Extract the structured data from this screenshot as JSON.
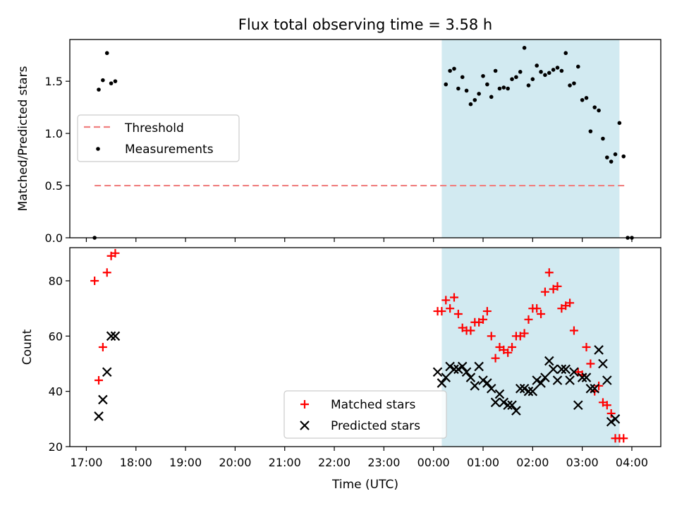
{
  "title": "Flux total observing time = 3.58 h",
  "colors": {
    "threshold": "#f08080",
    "measurement": "#000000",
    "matched": "#ff0000",
    "predicted": "#000000",
    "shade": "#add8e6"
  },
  "chart_data": [
    {
      "type": "scatter",
      "ylabel": "Matched/Predicted stars",
      "x_axis": "time (h since 17:00)",
      "ylim": [
        0,
        1.9
      ],
      "yticks": [
        0.0,
        0.5,
        1.0,
        1.5
      ],
      "ytick_labels": [
        "0.0",
        "0.5",
        "1.0",
        "1.5"
      ],
      "legend": [
        "Threshold",
        "Measurements"
      ],
      "legend_loc": "center-left",
      "shaded_span": [
        "00:10",
        "03:45"
      ],
      "threshold": {
        "name": "Threshold",
        "y": 0.5,
        "x_range": [
          "17:10",
          "03:55"
        ]
      },
      "measurements": {
        "name": "Measurements",
        "points": [
          [
            "17:10",
            0.0
          ],
          [
            "17:15",
            1.42
          ],
          [
            "17:20",
            1.51
          ],
          [
            "17:25",
            1.77
          ],
          [
            "17:30",
            1.48
          ],
          [
            "17:35",
            1.5
          ],
          [
            "00:15",
            1.47
          ],
          [
            "00:20",
            1.6
          ],
          [
            "00:25",
            1.62
          ],
          [
            "00:30",
            1.43
          ],
          [
            "00:35",
            1.54
          ],
          [
            "00:40",
            1.41
          ],
          [
            "00:45",
            1.28
          ],
          [
            "00:50",
            1.32
          ],
          [
            "00:55",
            1.38
          ],
          [
            "01:00",
            1.55
          ],
          [
            "01:05",
            1.47
          ],
          [
            "01:10",
            1.35
          ],
          [
            "01:15",
            1.6
          ],
          [
            "01:20",
            1.43
          ],
          [
            "01:25",
            1.44
          ],
          [
            "01:30",
            1.43
          ],
          [
            "01:35",
            1.52
          ],
          [
            "01:40",
            1.54
          ],
          [
            "01:45",
            1.59
          ],
          [
            "01:50",
            1.82
          ],
          [
            "01:55",
            1.46
          ],
          [
            "02:00",
            1.52
          ],
          [
            "02:05",
            1.65
          ],
          [
            "02:10",
            1.59
          ],
          [
            "02:15",
            1.56
          ],
          [
            "02:20",
            1.58
          ],
          [
            "02:25",
            1.61
          ],
          [
            "02:30",
            1.63
          ],
          [
            "02:35",
            1.6
          ],
          [
            "02:40",
            1.77
          ],
          [
            "02:45",
            1.46
          ],
          [
            "02:50",
            1.48
          ],
          [
            "02:55",
            1.64
          ],
          [
            "03:00",
            1.32
          ],
          [
            "03:05",
            1.34
          ],
          [
            "03:10",
            1.02
          ],
          [
            "03:15",
            1.25
          ],
          [
            "03:20",
            1.22
          ],
          [
            "03:25",
            0.95
          ],
          [
            "03:30",
            0.77
          ],
          [
            "03:35",
            0.73
          ],
          [
            "03:40",
            0.8
          ],
          [
            "03:45",
            1.1
          ],
          [
            "03:50",
            0.78
          ],
          [
            "03:55",
            0.0
          ],
          [
            "04:00",
            0.0
          ]
        ]
      }
    },
    {
      "type": "scatter",
      "ylabel": "Count",
      "xlabel": "Time (UTC)",
      "x_axis": "time (h since 17:00)",
      "xlim": [
        "16:40",
        "04:35"
      ],
      "ylim": [
        20,
        92
      ],
      "yticks": [
        20,
        40,
        60,
        80
      ],
      "ytick_labels": [
        "20",
        "40",
        "60",
        "80"
      ],
      "xticks": [
        "17:00",
        "18:00",
        "19:00",
        "20:00",
        "21:00",
        "22:00",
        "23:00",
        "00:00",
        "01:00",
        "02:00",
        "03:00",
        "04:00"
      ],
      "xtick_labels": [
        "17:00",
        "18:00",
        "19:00",
        "20:00",
        "21:00",
        "22:00",
        "23:00",
        "00:00",
        "01:00",
        "02:00",
        "03:00",
        "04:00"
      ],
      "legend": [
        "Matched stars",
        "Predicted stars"
      ],
      "legend_loc": "lower-center",
      "shaded_span": [
        "00:10",
        "03:45"
      ],
      "series": [
        {
          "name": "Matched stars",
          "points": [
            [
              "17:10",
              80
            ],
            [
              "17:15",
              44
            ],
            [
              "17:20",
              56
            ],
            [
              "17:25",
              83
            ],
            [
              "17:30",
              89
            ],
            [
              "17:35",
              90
            ],
            [
              "00:05",
              69
            ],
            [
              "00:10",
              69
            ],
            [
              "00:15",
              73
            ],
            [
              "00:20",
              70
            ],
            [
              "00:25",
              74
            ],
            [
              "00:30",
              68
            ],
            [
              "00:35",
              63
            ],
            [
              "00:40",
              62
            ],
            [
              "00:45",
              62
            ],
            [
              "00:50",
              65
            ],
            [
              "00:55",
              65
            ],
            [
              "01:00",
              66
            ],
            [
              "01:05",
              69
            ],
            [
              "01:10",
              60
            ],
            [
              "01:15",
              52
            ],
            [
              "01:20",
              56
            ],
            [
              "01:25",
              55
            ],
            [
              "01:30",
              54
            ],
            [
              "01:35",
              56
            ],
            [
              "01:40",
              60
            ],
            [
              "01:45",
              60
            ],
            [
              "01:50",
              61
            ],
            [
              "01:55",
              66
            ],
            [
              "02:00",
              70
            ],
            [
              "02:05",
              70
            ],
            [
              "02:10",
              68
            ],
            [
              "02:15",
              76
            ],
            [
              "02:20",
              83
            ],
            [
              "02:25",
              77
            ],
            [
              "02:30",
              78
            ],
            [
              "02:35",
              70
            ],
            [
              "02:40",
              71
            ],
            [
              "02:45",
              72
            ],
            [
              "02:50",
              62
            ],
            [
              "02:55",
              47
            ],
            [
              "03:00",
              46
            ],
            [
              "03:05",
              56
            ],
            [
              "03:10",
              50
            ],
            [
              "03:15",
              40
            ],
            [
              "03:20",
              42
            ],
            [
              "03:25",
              36
            ],
            [
              "03:30",
              35
            ],
            [
              "03:35",
              32
            ],
            [
              "03:40",
              23
            ],
            [
              "03:45",
              23
            ],
            [
              "03:50",
              23
            ]
          ]
        },
        {
          "name": "Predicted stars",
          "points": [
            [
              "17:15",
              31
            ],
            [
              "17:20",
              37
            ],
            [
              "17:25",
              47
            ],
            [
              "17:30",
              60
            ],
            [
              "17:35",
              60
            ],
            [
              "00:05",
              47
            ],
            [
              "00:10",
              43
            ],
            [
              "00:15",
              45
            ],
            [
              "00:20",
              49
            ],
            [
              "00:25",
              48
            ],
            [
              "00:30",
              48
            ],
            [
              "00:35",
              49
            ],
            [
              "00:40",
              47
            ],
            [
              "00:45",
              45
            ],
            [
              "00:50",
              42
            ],
            [
              "00:55",
              49
            ],
            [
              "01:00",
              44
            ],
            [
              "01:05",
              43
            ],
            [
              "01:10",
              41
            ],
            [
              "01:15",
              36
            ],
            [
              "01:20",
              39
            ],
            [
              "01:25",
              36
            ],
            [
              "01:30",
              35
            ],
            [
              "01:35",
              35
            ],
            [
              "01:40",
              33
            ],
            [
              "01:45",
              41
            ],
            [
              "01:50",
              41
            ],
            [
              "01:55",
              40
            ],
            [
              "02:00",
              40
            ],
            [
              "02:05",
              44
            ],
            [
              "02:10",
              43
            ],
            [
              "02:15",
              45
            ],
            [
              "02:20",
              51
            ],
            [
              "02:25",
              48
            ],
            [
              "02:30",
              44
            ],
            [
              "02:35",
              48
            ],
            [
              "02:40",
              48
            ],
            [
              "02:45",
              44
            ],
            [
              "02:50",
              47
            ],
            [
              "02:55",
              35
            ],
            [
              "03:00",
              45
            ],
            [
              "03:05",
              45
            ],
            [
              "03:10",
              41
            ],
            [
              "03:15",
              41
            ],
            [
              "03:20",
              55
            ],
            [
              "03:25",
              50
            ],
            [
              "03:30",
              44
            ],
            [
              "03:35",
              29
            ],
            [
              "03:40",
              30
            ]
          ]
        }
      ]
    }
  ]
}
